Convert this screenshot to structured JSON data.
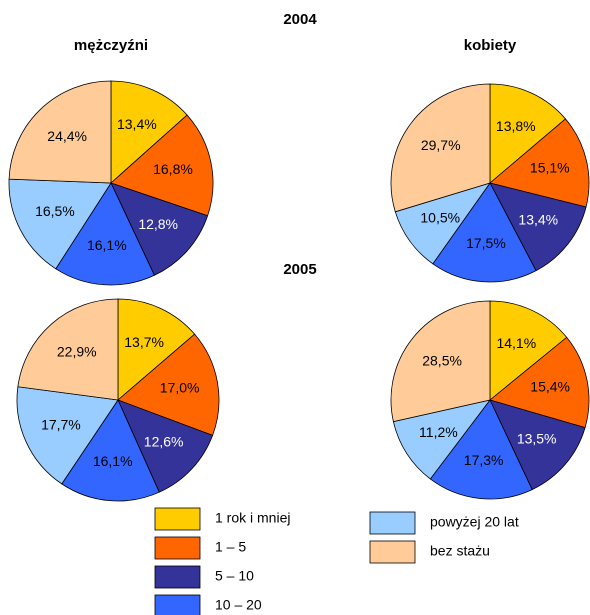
{
  "headers": {
    "years": [
      "2004",
      "2005"
    ],
    "groups": [
      "mężczyźni",
      "kobiety"
    ]
  },
  "legend": {
    "items": [
      {
        "name": "1 rok i mniej",
        "color": "#ffcc00"
      },
      {
        "name": "1 – 5",
        "color": "#ff6600"
      },
      {
        "name": "5 – 10",
        "color": "#333399"
      },
      {
        "name": "10 – 20",
        "color": "#3366ff"
      },
      {
        "name": "powyżej 20 lat",
        "color": "#99ccff"
      },
      {
        "name": "bez stażu",
        "color": "#ffcc99"
      }
    ]
  },
  "chart_data": [
    {
      "type": "pie",
      "values": [
        13.4,
        16.8,
        12.8,
        16.1,
        16.5,
        24.4
      ],
      "value_labels": [
        "13,4%",
        "16,8%",
        "12,8%",
        "16,1%",
        "16,5%",
        "24,4%"
      ]
    },
    {
      "type": "pie",
      "values": [
        13.8,
        15.1,
        13.4,
        17.5,
        10.5,
        29.7
      ],
      "value_labels": [
        "13,8%",
        "15,1%",
        "13,4%",
        "17,5%",
        "10,5%",
        "29,7%"
      ]
    },
    {
      "type": "pie",
      "values": [
        13.7,
        17.0,
        12.6,
        16.1,
        17.7,
        22.9
      ],
      "value_labels": [
        "13,7%",
        "17,0%",
        "12,6%",
        "16,1%",
        "17,7%",
        "22,9%"
      ]
    },
    {
      "type": "pie",
      "values": [
        14.1,
        15.4,
        13.5,
        17.3,
        11.2,
        28.5
      ],
      "value_labels": [
        "14,1%",
        "15,4%",
        "13,5%",
        "17,3%",
        "11,2%",
        "28,5%"
      ]
    }
  ]
}
